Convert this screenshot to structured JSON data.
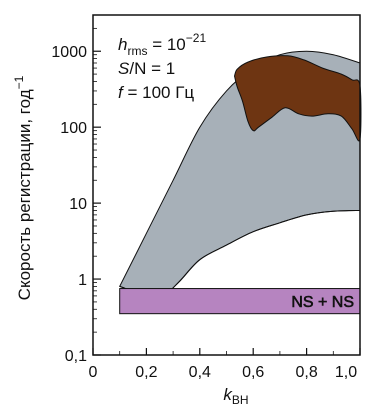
{
  "chart_data": {
    "type": "area",
    "ylabel": "Скорость регистрации, год",
    "ylabel_sup": "−1",
    "xlabel_main": "k",
    "xlabel_sub": "BH",
    "y_scale": "log",
    "xlim": [
      0,
      1.0
    ],
    "ylim": [
      0.1,
      3000
    ],
    "x_ticks": [
      "0",
      "0,2",
      "0,4",
      "0,6",
      "0,8",
      "1,0"
    ],
    "y_ticks": [
      "0,1",
      "1",
      "10",
      "100",
      "1000"
    ],
    "annotations": {
      "h_main": "h",
      "h_sub": "rms",
      "h_value": " = 10",
      "h_exp": "−21",
      "sn_main": "S",
      "sn_rest": "/N = 1",
      "f_main": "f",
      "f_rest": " = 100 Гц"
    },
    "colors": {
      "grey_band": "#a7b0b8",
      "brown_region": "#6e3512",
      "purple_band": "#b684c0"
    },
    "grey_band": {
      "upper": [
        [
          0.1,
          0.8
        ],
        [
          0.2,
          4
        ],
        [
          0.3,
          20
        ],
        [
          0.4,
          100
        ],
        [
          0.5,
          300
        ],
        [
          0.6,
          600
        ],
        [
          0.7,
          900
        ],
        [
          0.8,
          1000
        ],
        [
          0.9,
          900
        ],
        [
          1.0,
          700
        ]
      ],
      "lower": [
        [
          0.1,
          0.8
        ],
        [
          0.2,
          0.6
        ],
        [
          0.25,
          0.55
        ],
        [
          0.32,
          0.9
        ],
        [
          0.4,
          1.8
        ],
        [
          0.5,
          2.8
        ],
        [
          0.6,
          4.2
        ],
        [
          0.7,
          5.5
        ],
        [
          0.8,
          7
        ],
        [
          0.9,
          7.8
        ],
        [
          1.0,
          8
        ]
      ]
    },
    "brown_region": {
      "boundary": [
        [
          0.53,
          470
        ],
        [
          0.54,
          580
        ],
        [
          0.58,
          720
        ],
        [
          0.65,
          840
        ],
        [
          0.73,
          870
        ],
        [
          0.79,
          770
        ],
        [
          0.86,
          600
        ],
        [
          0.93,
          500
        ],
        [
          0.97,
          420
        ],
        [
          1.0,
          350
        ],
        [
          1.0,
          70
        ],
        [
          0.97,
          95
        ],
        [
          0.93,
          140
        ],
        [
          0.88,
          150
        ],
        [
          0.82,
          140
        ],
        [
          0.77,
          150
        ],
        [
          0.72,
          180
        ],
        [
          0.67,
          135
        ],
        [
          0.62,
          100
        ],
        [
          0.6,
          90
        ],
        [
          0.58,
          120
        ],
        [
          0.56,
          220
        ],
        [
          0.54,
          340
        ]
      ]
    },
    "purple_band": {
      "label": "NS + NS",
      "x": [
        0.1,
        1.0
      ],
      "y": [
        0.35,
        0.75
      ]
    }
  }
}
